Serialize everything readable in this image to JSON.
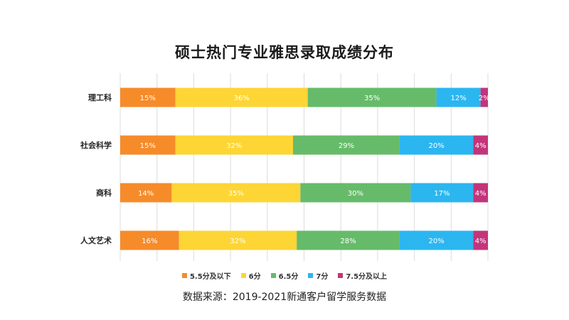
{
  "title": "硕士热门专业雅思录取成绩分布",
  "source": "数据来源：2019-2021新通客户留学服务数据",
  "chart_data": {
    "type": "bar",
    "orientation": "horizontal",
    "stacked": true,
    "title": "硕士热门专业雅思录取成绩分布",
    "categories": [
      "理工科",
      "社会科学",
      "商科",
      "人文艺术"
    ],
    "series": [
      {
        "name": "5.5分及以下",
        "color": "#F68B2A",
        "values": [
          15,
          15,
          14,
          16
        ],
        "labels": [
          "15%",
          "15%",
          "14%",
          "16%"
        ]
      },
      {
        "name": "6分",
        "color": "#FDD535",
        "values": [
          36,
          32,
          35,
          32
        ],
        "labels": [
          "36%",
          "32%",
          "35%",
          "32%"
        ]
      },
      {
        "name": "6.5分",
        "color": "#66BB6A",
        "values": [
          35,
          29,
          30,
          28
        ],
        "labels": [
          "35%",
          "29%",
          "30%",
          "28%"
        ]
      },
      {
        "name": "7分",
        "color": "#2BB6F0",
        "values": [
          12,
          20,
          17,
          20
        ],
        "labels": [
          "12%",
          "20%",
          "17%",
          "20%"
        ]
      },
      {
        "name": "7.5分及以上",
        "color": "#C2357B",
        "values": [
          2,
          4,
          4,
          4
        ],
        "labels": [
          "2%",
          "4%",
          "4%",
          "4%"
        ]
      }
    ],
    "xlim": [
      0,
      100
    ],
    "grid": true,
    "legend": "bottom"
  }
}
